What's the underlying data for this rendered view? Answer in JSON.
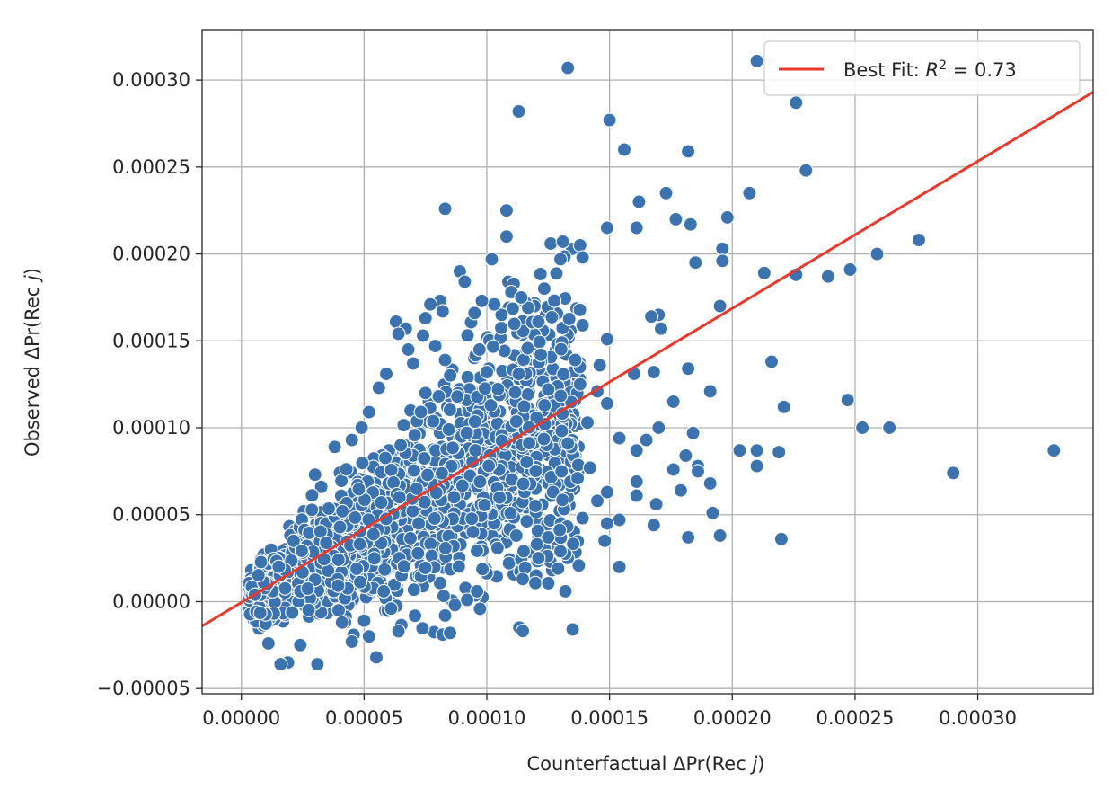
{
  "chart_data": {
    "type": "scatter",
    "xlabel": "Counterfactual ΔPr(Rec j)",
    "ylabel": "Observed ΔPr(Rec j)",
    "xlabel_parts": {
      "prefix": "Counterfactual ΔPr(Rec ",
      "var": "j",
      "suffix": ")"
    },
    "ylabel_parts": {
      "prefix": "Observed ΔPr(Rec ",
      "var": "j",
      "suffix": ")"
    },
    "xlim": [
      -1.6e-05,
      0.000347
    ],
    "ylim": [
      -5.3e-05,
      0.000329
    ],
    "xticks": [
      0.0,
      5e-05,
      0.0001,
      0.00015,
      0.0002,
      0.00025,
      0.0003
    ],
    "xtick_labels": [
      "0.00000",
      "0.00005",
      "0.00010",
      "0.00015",
      "0.00020",
      "0.00025",
      "0.00030"
    ],
    "yticks": [
      -5e-05,
      0.0,
      5e-05,
      0.0001,
      0.00015,
      0.0002,
      0.00025,
      0.0003
    ],
    "ytick_labels": [
      "−0.00005",
      "0.00000",
      "0.00005",
      "0.00010",
      "0.00015",
      "0.00020",
      "0.00025",
      "0.00030"
    ],
    "grid": true,
    "legend": {
      "placement": "top-right",
      "label": "Best Fit: R² = 0.73",
      "label_parts": {
        "prefix": "Best Fit: ",
        "var": "R",
        "sup": "2",
        "suffix": " = 0.73"
      }
    },
    "fit_line": {
      "slope": 0.846,
      "intercept": -5e-07,
      "color": "#e8392b"
    },
    "point_color": "#3a73b0",
    "point_edge_color": "#ffffff",
    "series": [
      {
        "name": "",
        "points": [
          [
            0.000133,
            0.000307
          ],
          [
            0.00021,
            0.000311
          ],
          [
            0.000226,
            0.000287
          ],
          [
            0.000113,
            0.000282
          ],
          [
            0.00015,
            0.000277
          ],
          [
            0.000156,
            0.00026
          ],
          [
            0.000182,
            0.000259
          ],
          [
            0.00023,
            0.000248
          ],
          [
            0.000207,
            0.000235
          ],
          [
            0.000173,
            0.000235
          ],
          [
            0.000162,
            0.00023
          ],
          [
            8.3e-05,
            0.000226
          ],
          [
            0.000108,
            0.000225
          ],
          [
            0.000198,
            0.000221
          ],
          [
            0.000177,
            0.00022
          ],
          [
            0.000183,
            0.000217
          ],
          [
            0.000149,
            0.000215
          ],
          [
            0.000161,
            0.000215
          ],
          [
            0.000108,
            0.00021
          ],
          [
            0.000126,
            0.000206
          ],
          [
            0.000131,
            0.000207
          ],
          [
            0.000138,
            0.000205
          ],
          [
            0.000196,
            0.000203
          ],
          [
            0.000276,
            0.000208
          ],
          [
            0.000259,
            0.0002
          ],
          [
            0.000102,
            0.000197
          ],
          [
            0.00013,
            0.000197
          ],
          [
            0.000139,
            0.000198
          ],
          [
            0.000196,
            0.000196
          ],
          [
            0.000185,
            0.000195
          ],
          [
            0.000248,
            0.000191
          ],
          [
            0.000213,
            0.000189
          ],
          [
            0.000226,
            0.000188
          ],
          [
            0.000239,
            0.000187
          ],
          [
            8.9e-05,
            0.00019
          ],
          [
            9.1e-05,
            0.000184
          ],
          [
            0.000195,
            0.00017
          ],
          [
            0.00017,
            0.000165
          ],
          [
            0.000167,
            0.000164
          ],
          [
            0.000171,
            0.000157
          ],
          [
            0.000139,
            0.000159
          ],
          [
            0.00011,
            0.000178
          ],
          [
            0.000114,
            0.000175
          ],
          [
            0.000216,
            0.000138
          ],
          [
            0.000149,
            0.000151
          ],
          [
            0.000182,
            0.000134
          ],
          [
            0.000136,
            0.000139
          ],
          [
            0.000146,
            0.000136
          ],
          [
            0.00016,
            0.000131
          ],
          [
            0.000168,
            0.000132
          ],
          [
            0.000191,
            0.000121
          ],
          [
            0.000176,
            0.000115
          ],
          [
            0.000247,
            0.000116
          ],
          [
            0.000221,
            0.000112
          ],
          [
            0.000253,
            0.0001
          ],
          [
            0.000264,
            0.0001
          ],
          [
            0.000331,
            8.7e-05
          ],
          [
            0.00029,
            7.4e-05
          ],
          [
            0.000203,
            8.7e-05
          ],
          [
            0.00021,
            8.7e-05
          ],
          [
            0.000219,
            8.6e-05
          ],
          [
            0.00021,
            7.8e-05
          ],
          [
            0.000184,
            9.7e-05
          ],
          [
            0.00017,
            0.0001
          ],
          [
            0.000165,
            9.3e-05
          ],
          [
            0.000154,
            9.4e-05
          ],
          [
            0.000161,
            8.7e-05
          ],
          [
            0.000181,
            8.4e-05
          ],
          [
            0.000186,
            7.8e-05
          ],
          [
            0.000176,
            7.6e-05
          ],
          [
            0.000186,
            7.5e-05
          ],
          [
            0.000191,
            6.8e-05
          ],
          [
            0.000179,
            6.4e-05
          ],
          [
            0.000161,
            6.9e-05
          ],
          [
            0.000161,
            6.1e-05
          ],
          [
            0.000169,
            5.6e-05
          ],
          [
            0.000192,
            5.1e-05
          ],
          [
            0.000154,
            4.7e-05
          ],
          [
            0.000168,
            4.4e-05
          ],
          [
            0.000182,
            3.7e-05
          ],
          [
            0.000195,
            3.8e-05
          ],
          [
            0.00022,
            3.6e-05
          ],
          [
            0.000149,
            4.5e-05
          ],
          [
            0.000148,
            3.5e-05
          ],
          [
            0.000154,
            2e-05
          ],
          [
            0.000132,
            6e-06
          ],
          [
            0.00013,
            2.9e-05
          ],
          [
            0.000129,
            1.9e-05
          ],
          [
            0.000121,
            2.5e-05
          ],
          [
            0.000115,
            2.9e-05
          ],
          [
            0.000112,
            3.8e-05
          ],
          [
            0.000125,
            3.7e-05
          ],
          [
            0.000139,
            4.8e-05
          ],
          [
            0.000145,
            5.8e-05
          ],
          [
            0.000149,
            6.3e-05
          ],
          [
            0.000137,
            7.1e-05
          ],
          [
            0.000142,
            7.7e-05
          ],
          [
            0.000133,
            9.1e-05
          ],
          [
            0.000141,
            0.000103
          ],
          [
            0.000149,
            0.000114
          ],
          [
            0.000145,
            0.000121
          ],
          [
            0.000138,
            0.000125
          ],
          [
            0.000125,
            0.000122
          ],
          [
            0.000122,
            0.000142
          ],
          [
            0.000113,
            0.000131
          ],
          [
            0.000121,
            0.000161
          ],
          [
            0.000106,
            0.000165
          ],
          [
            0.000103,
            0.000171
          ],
          [
            9.8e-05,
            0.000173
          ],
          [
            9.5e-05,
            0.000166
          ],
          [
            8.1e-05,
            0.000173
          ],
          [
            7.7e-05,
            0.000171
          ],
          [
            8.2e-05,
            0.000167
          ],
          [
            7.5e-05,
            0.000163
          ],
          [
            6.3e-05,
            0.000161
          ],
          [
            6.7e-05,
            0.000157
          ],
          [
            6.4e-05,
            0.000154
          ],
          [
            7.4e-05,
            0.000153
          ],
          [
            6.8e-05,
            0.000145
          ],
          [
            7.9e-05,
            0.000147
          ],
          [
            8.3e-05,
            0.000139
          ],
          [
            7e-05,
            0.000137
          ],
          [
            5.9e-05,
            0.000131
          ],
          [
            5.6e-05,
            0.000123
          ],
          [
            7.5e-05,
            0.00012
          ],
          [
            8.8e-05,
            0.000118
          ],
          [
            9.7e-05,
            0.000145
          ],
          [
            0.0001,
            0.000132
          ],
          [
            5.8e-05,
            6e-06
          ],
          [
            6.1e-05,
            -4e-06
          ],
          [
            6.4e-05,
            -1.7e-05
          ],
          [
            5.2e-05,
            -2e-05
          ],
          [
            5e-05,
            -1.1e-05
          ],
          [
            4.5e-05,
            -2.3e-05
          ],
          [
            5.5e-05,
            -3.2e-05
          ],
          [
            4.1e-05,
            -1.2e-05
          ],
          [
            3.1e-05,
            -3.6e-05
          ],
          [
            1.9e-05,
            -3.5e-05
          ],
          [
            1.6e-05,
            -3.6e-05
          ],
          [
            2.4e-05,
            -2.5e-05
          ],
          [
            1.1e-05,
            -2.4e-05
          ],
          [
            8.2e-05,
            -1.9e-05
          ],
          [
            8.5e-05,
            -1.8e-05
          ],
          [
            8.3e-05,
            -8e-06
          ],
          [
            8.7e-05,
            -2e-06
          ],
          [
            9.2e-05,
            1e-06
          ],
          [
            9.6e-05,
            6e-06
          ],
          [
            3e-05,
            7.3e-05
          ],
          [
            3.8e-05,
            8.9e-05
          ],
          [
            4.5e-05,
            9.3e-05
          ],
          [
            4.9e-05,
            0.0001
          ],
          [
            5.2e-05,
            0.000109
          ]
        ]
      }
    ]
  }
}
